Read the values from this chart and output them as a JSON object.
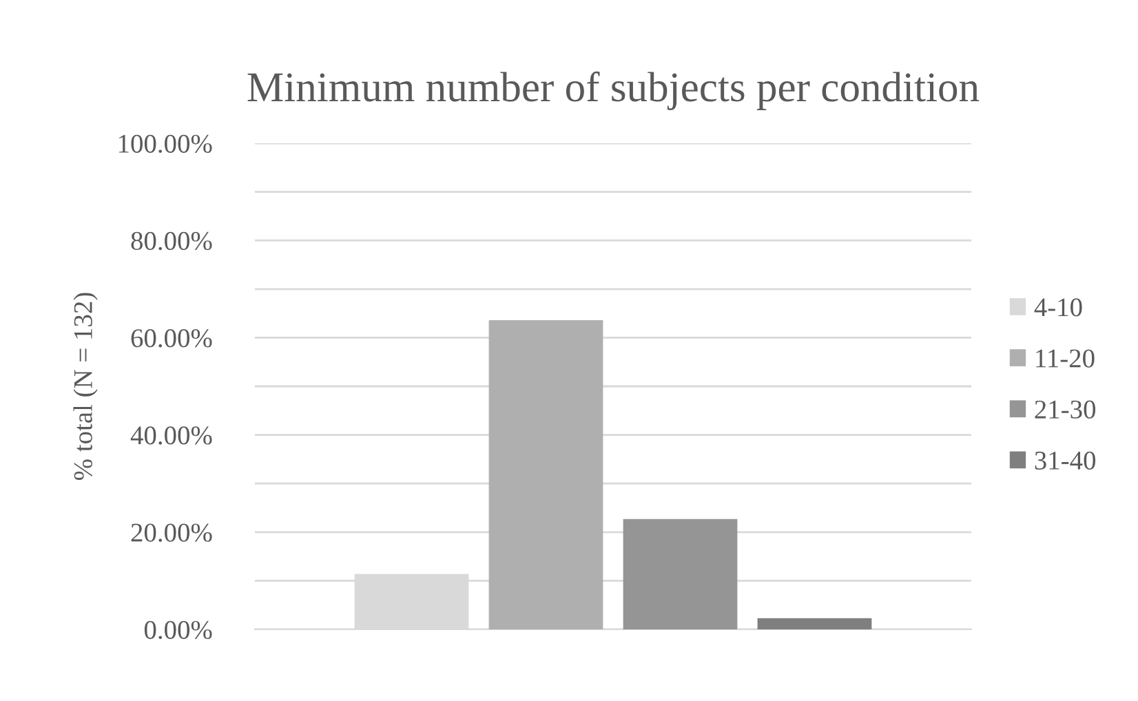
{
  "chart_data": {
    "type": "bar",
    "title": "Minimum number of subjects per condition",
    "ylabel": "% total (N = 132)",
    "categories": [
      null
    ],
    "series": [
      {
        "name": "4-10",
        "color": "#d9d9d9",
        "values": [
          11.4
        ]
      },
      {
        "name": "11-20",
        "color": "#afafaf",
        "values": [
          63.6
        ]
      },
      {
        "name": "21-30",
        "color": "#959595",
        "values": [
          22.7
        ]
      },
      {
        "name": "31-40",
        "color": "#7f7f7f",
        "values": [
          2.3
        ]
      }
    ],
    "ylim": [
      0,
      100
    ],
    "yticks": [
      {
        "value": 0,
        "label": "0.00%"
      },
      {
        "value": 10,
        "label": null
      },
      {
        "value": 20,
        "label": "20.00%"
      },
      {
        "value": 30,
        "label": null
      },
      {
        "value": 40,
        "label": "40.00%"
      },
      {
        "value": 50,
        "label": null
      },
      {
        "value": 60,
        "label": "60.00%"
      },
      {
        "value": 70,
        "label": null
      },
      {
        "value": 80,
        "label": "80.00%"
      },
      {
        "value": 90,
        "label": null
      },
      {
        "value": 100,
        "label": "100.00%"
      }
    ],
    "grid": "y",
    "legend": "right"
  }
}
